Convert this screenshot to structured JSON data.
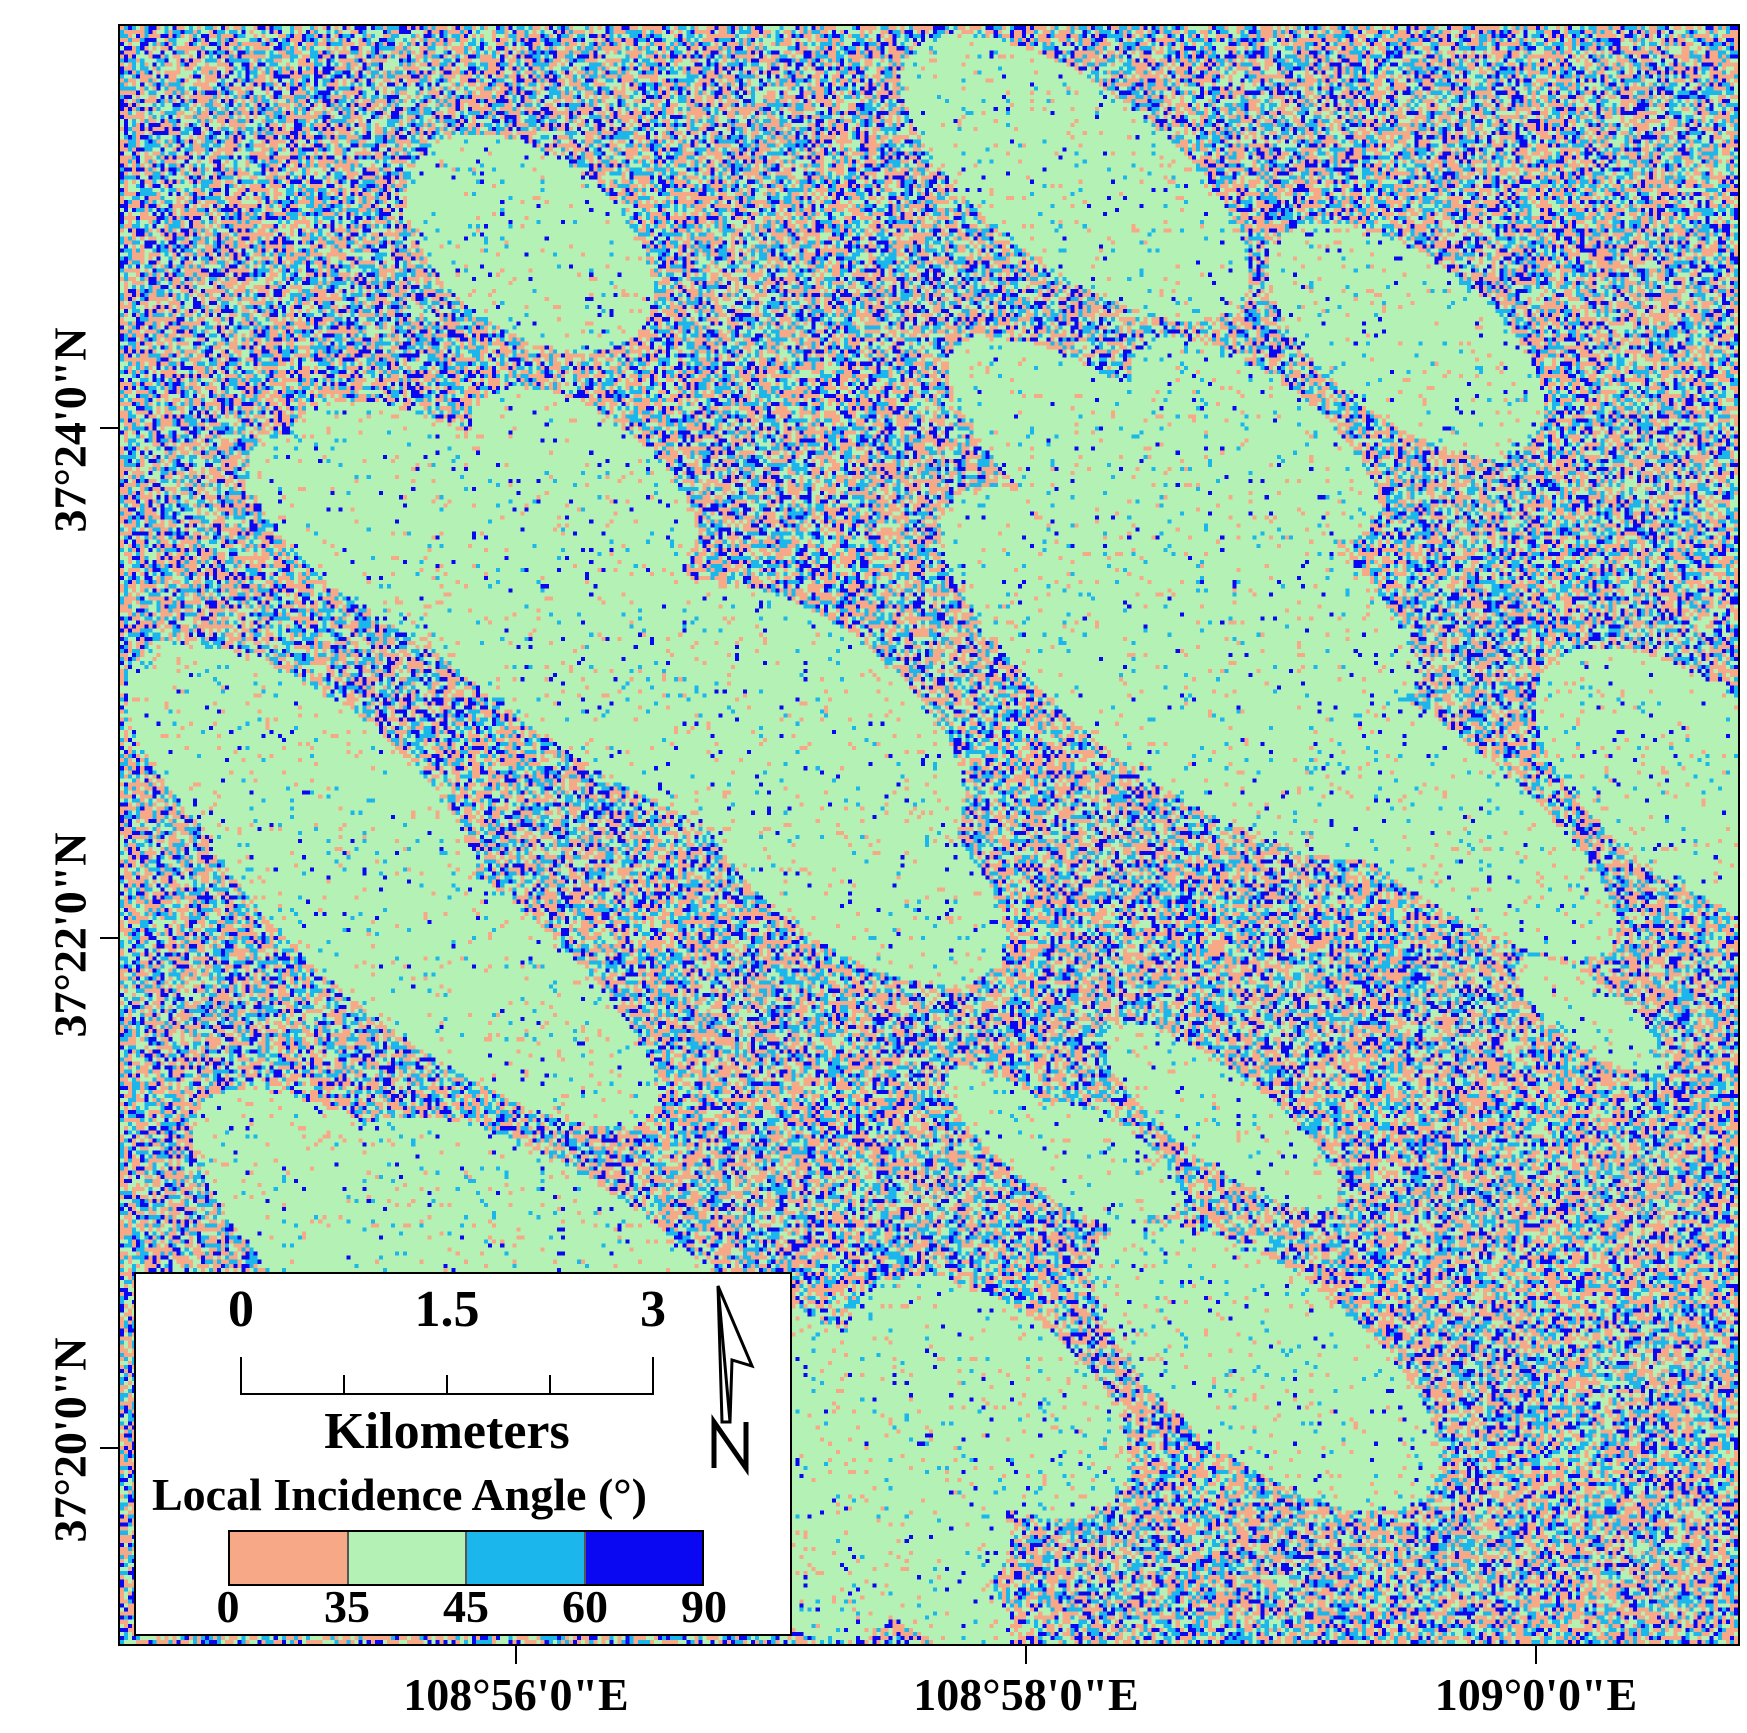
{
  "map": {
    "lat_labels": [
      "37°24'0\"N",
      "37°22'0\"N",
      "37°20'0\"N"
    ],
    "lon_labels": [
      "108°56'0\"E",
      "108°58'0\"E",
      "109°0'0\"E"
    ]
  },
  "scale_bar": {
    "labels": [
      "0",
      "1.5",
      "3"
    ],
    "units": "Kilometers"
  },
  "legend": {
    "title": "Local Incidence Angle (°)",
    "classes": [
      {
        "range": [
          0,
          35
        ],
        "color": "#f7a987"
      },
      {
        "range": [
          35,
          45
        ],
        "color": "#b3f1b4"
      },
      {
        "range": [
          45,
          60
        ],
        "color": "#1ab6ec"
      },
      {
        "range": [
          60,
          90
        ],
        "color": "#0a08f2"
      }
    ],
    "break_labels": [
      "0",
      "35",
      "45",
      "60",
      "90"
    ]
  },
  "north_arrow": {
    "label": "N"
  }
}
